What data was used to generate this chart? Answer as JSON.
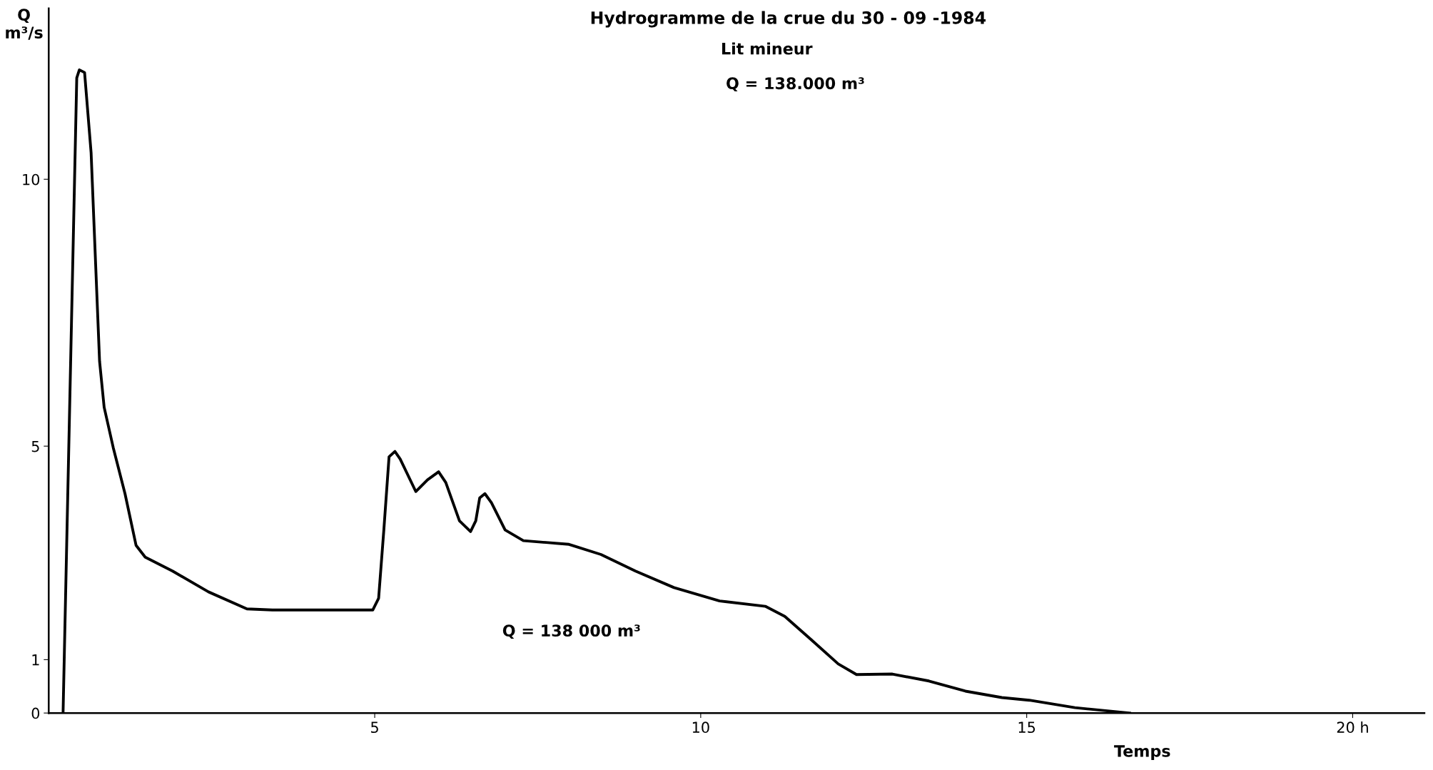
{
  "chart_data": {
    "type": "line",
    "title": "Hydrogramme de la crue du 30 - 09 -1984",
    "subtitle": "Lit mineur",
    "xlabel": "Temps",
    "ylabel": "Q\nm³/s",
    "annotations": [
      "Q = 138.000 m³",
      "Q = 138 000 m³"
    ],
    "xlim": [
      0,
      21.1
    ],
    "ylim": [
      0,
      13.2
    ],
    "xticks": [
      5,
      10,
      15,
      {
        "value": 20,
        "label": "20 h"
      }
    ],
    "yticks": [
      0,
      1,
      5,
      10
    ],
    "grid": false,
    "marker": "none",
    "line_style": "solid",
    "series": [
      {
        "color": "#000000",
        "x": [
          0.22,
          0.43,
          0.47,
          0.55,
          0.65,
          0.78,
          0.85,
          0.99,
          1.17,
          1.34,
          1.48,
          1.9,
          2.45,
          3.04,
          3.43,
          4.97,
          5.06,
          5.14,
          5.22,
          5.31,
          5.39,
          5.63,
          5.81,
          5.98,
          6.09,
          6.3,
          6.47,
          6.55,
          6.61,
          6.69,
          6.79,
          7.0,
          7.28,
          7.98,
          8.47,
          9.0,
          9.59,
          10.29,
          10.99,
          11.29,
          11.69,
          12.11,
          12.39,
          12.94,
          13.5,
          14.06,
          14.62,
          15.04,
          15.74,
          16.58
        ],
        "values": [
          0,
          11.9,
          12.05,
          12.0,
          10.5,
          6.59,
          5.73,
          4.97,
          4.11,
          3.14,
          2.92,
          2.66,
          2.27,
          1.95,
          1.93,
          1.93,
          2.15,
          3.43,
          4.8,
          4.9,
          4.76,
          4.15,
          4.37,
          4.52,
          4.32,
          3.6,
          3.4,
          3.6,
          4.03,
          4.11,
          3.94,
          3.43,
          3.23,
          3.16,
          2.97,
          2.66,
          2.35,
          2.1,
          2.0,
          1.81,
          1.38,
          0.92,
          0.72,
          0.73,
          0.6,
          0.41,
          0.29,
          0.24,
          0.1,
          0
        ]
      }
    ]
  }
}
